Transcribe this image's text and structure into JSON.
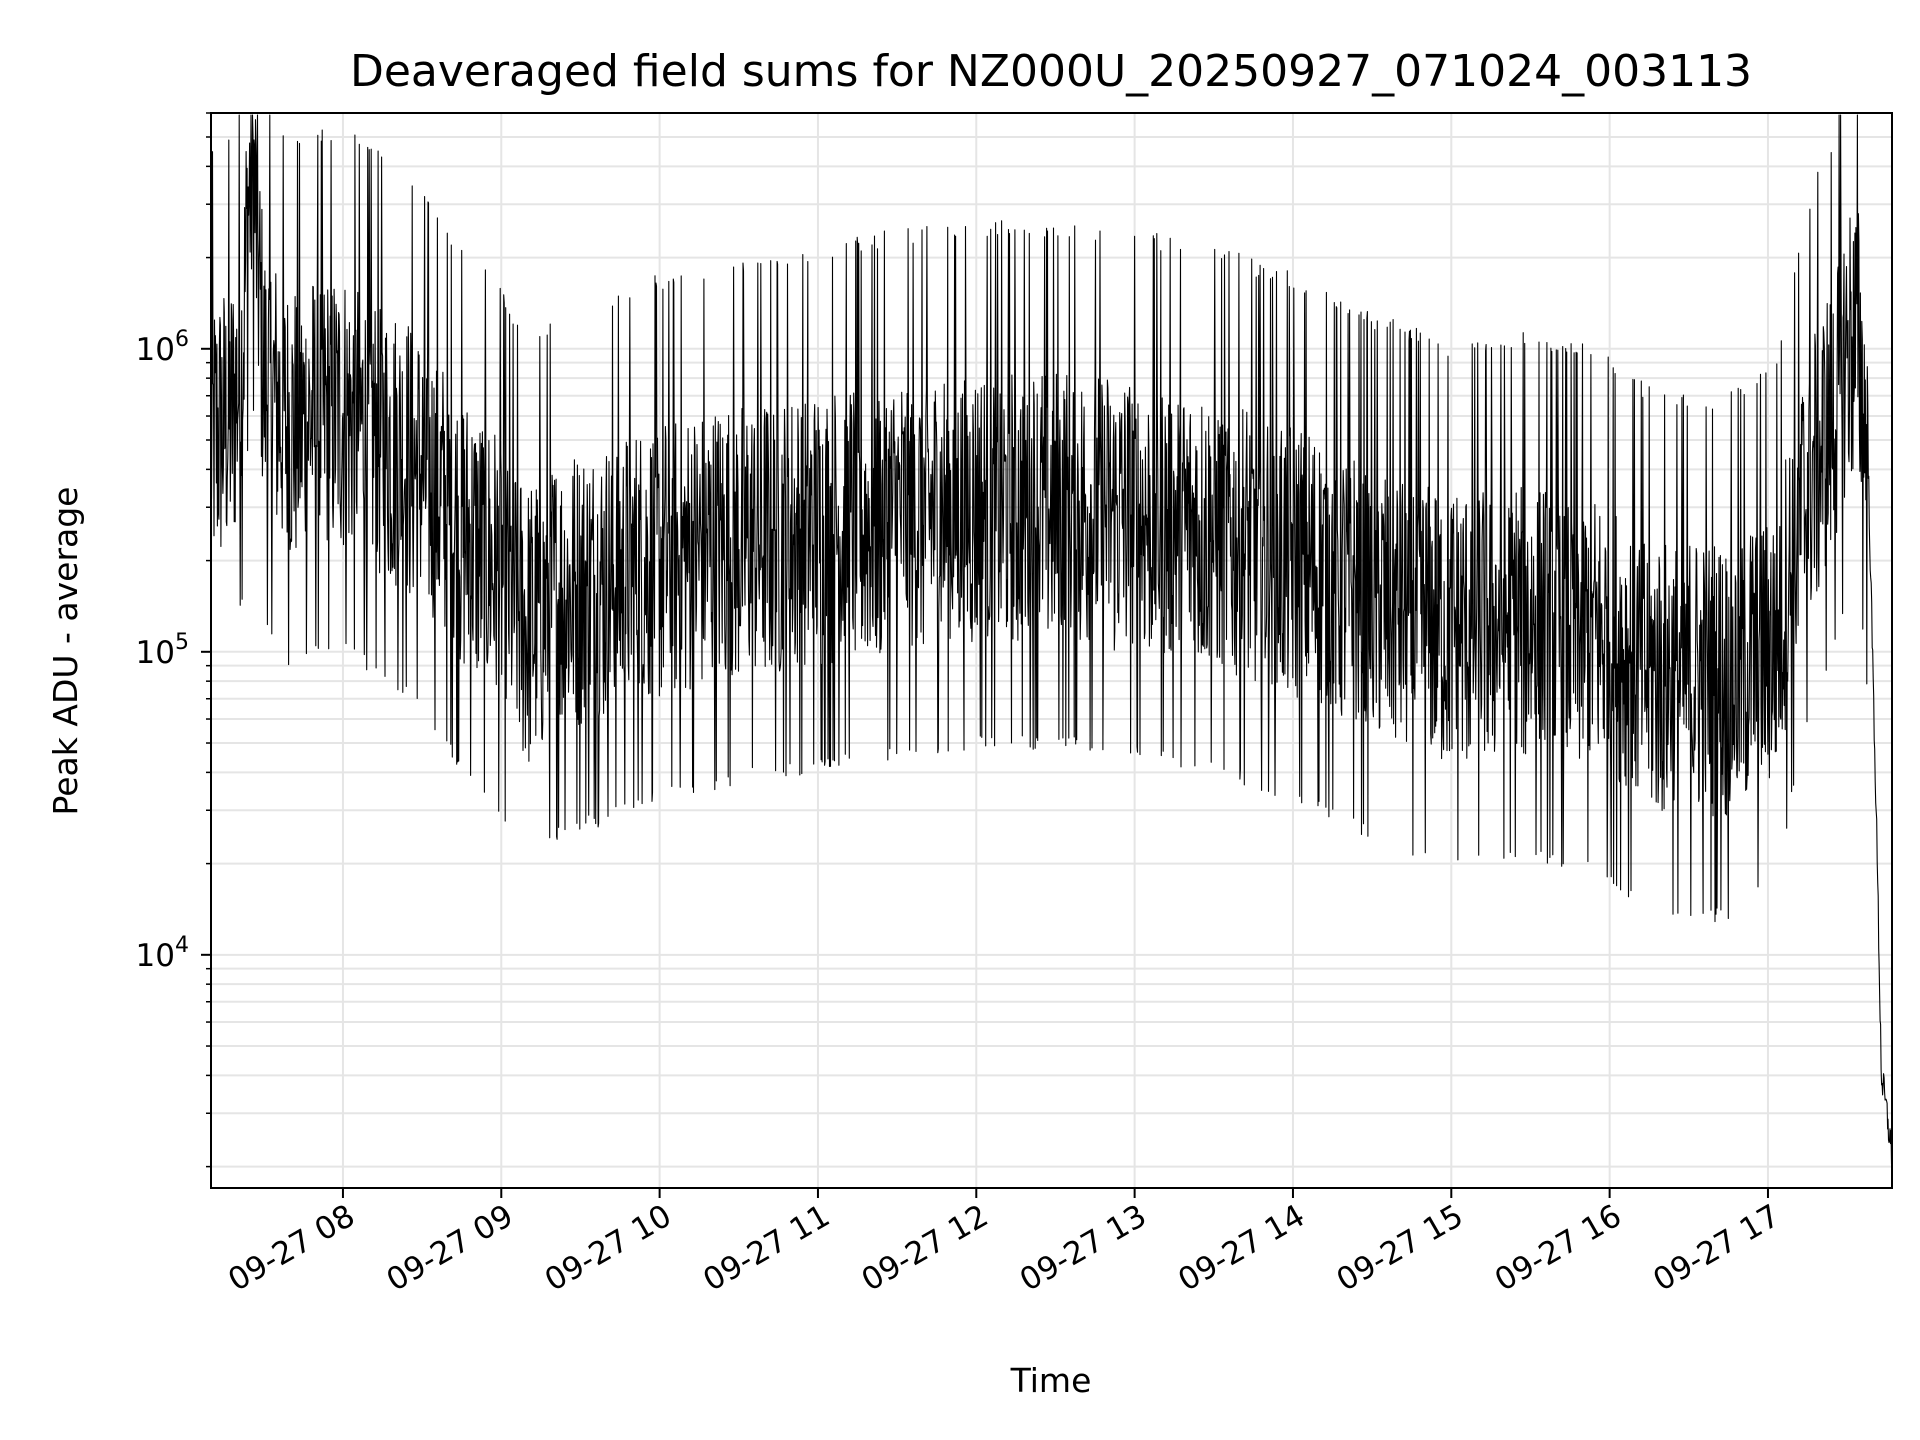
{
  "chart_data": {
    "type": "line",
    "title": "Deaveraged field sums for NZ000U_20250927_071024_003113",
    "xlabel": "Time",
    "ylabel": "Peak ADU - average",
    "x_tick_labels": [
      "09-27 08",
      "09-27 09",
      "09-27 10",
      "09-27 11",
      "09-27 12",
      "09-27 13",
      "09-27 14",
      "09-27 15",
      "09-27 16",
      "09-27 17"
    ],
    "x_range": [
      "2025-09-27T07:10",
      "2025-09-27T17:47"
    ],
    "y_scale": "log",
    "y_tick_labels": [
      {
        "base": "10",
        "exp": "4",
        "value": 10000
      },
      {
        "base": "10",
        "exp": "5",
        "value": 100000
      },
      {
        "base": "10",
        "exp": "6",
        "value": 1000000
      }
    ],
    "ylim": [
      1700,
      6000000
    ],
    "grid": true,
    "series": [
      {
        "color": "#000000",
        "line_width": "thin",
        "points": [
          [
            "2025-09-27T07:10",
            500000
          ],
          [
            "2025-09-27T07:18",
            600000
          ],
          [
            "2025-09-27T07:22",
            950000
          ],
          [
            "2025-09-27T07:24",
            3000000
          ],
          [
            "2025-09-27T07:26",
            4000000
          ],
          [
            "2025-09-27T07:30",
            800000
          ],
          [
            "2025-09-27T07:40",
            550000
          ],
          [
            "2025-09-27T07:50",
            600000
          ],
          [
            "2025-09-27T08:00",
            620000
          ],
          [
            "2025-09-27T08:15",
            500000
          ],
          [
            "2025-09-27T08:30",
            400000
          ],
          [
            "2025-09-27T08:45",
            250000
          ],
          [
            "2025-09-27T09:00",
            180000
          ],
          [
            "2025-09-27T09:10",
            120000
          ],
          [
            "2025-09-27T09:20",
            150000
          ],
          [
            "2025-09-27T09:40",
            170000
          ],
          [
            "2025-09-27T10:00",
            200000
          ],
          [
            "2025-09-27T10:30",
            230000
          ],
          [
            "2025-09-27T11:00",
            250000
          ],
          [
            "2025-09-27T11:30",
            280000
          ],
          [
            "2025-09-27T12:00",
            300000
          ],
          [
            "2025-09-27T12:30",
            300000
          ],
          [
            "2025-09-27T13:00",
            280000
          ],
          [
            "2025-09-27T13:30",
            250000
          ],
          [
            "2025-09-27T14:00",
            200000
          ],
          [
            "2025-09-27T14:30",
            150000
          ],
          [
            "2025-09-27T15:00",
            120000
          ],
          [
            "2025-09-27T15:30",
            130000
          ],
          [
            "2025-09-27T16:00",
            110000
          ],
          [
            "2025-09-27T16:15",
            85000
          ],
          [
            "2025-09-27T16:45",
            80000
          ],
          [
            "2025-09-27T17:03",
            110000
          ],
          [
            "2025-09-27T17:15",
            350000
          ],
          [
            "2025-09-27T17:25",
            600000
          ],
          [
            "2025-09-27T17:30",
            1000000
          ],
          [
            "2025-09-27T17:34",
            1100000
          ],
          [
            "2025-09-27T17:38",
            400000
          ],
          [
            "2025-09-27T17:41",
            30000
          ],
          [
            "2025-09-27T17:43",
            4000
          ],
          [
            "2025-09-27T17:45",
            3000
          ],
          [
            "2025-09-27T17:47",
            2200
          ]
        ]
      }
    ]
  }
}
